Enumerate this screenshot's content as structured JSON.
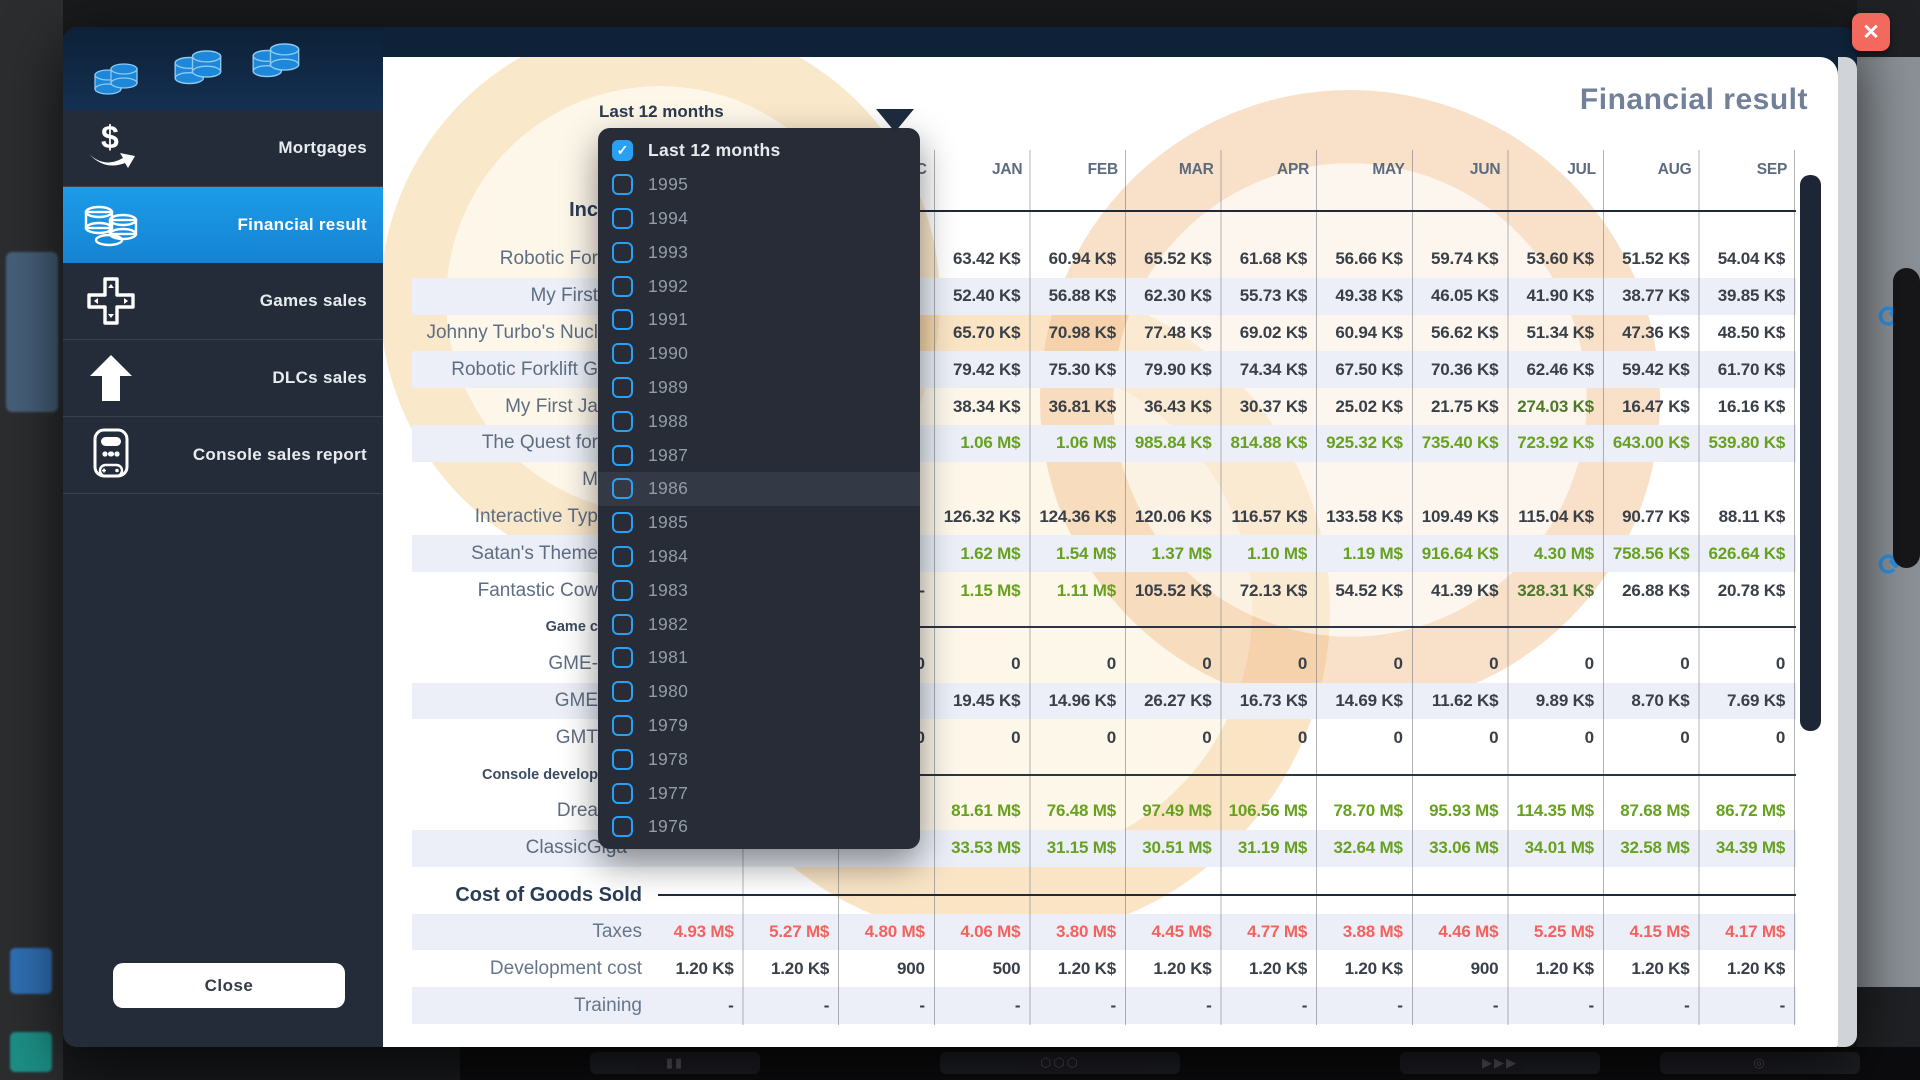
{
  "dialog": {
    "title": "Financial result",
    "close_symbol": "✕"
  },
  "filter": {
    "selected": "Last 12 months"
  },
  "sidebar": {
    "items": [
      {
        "label": "Mortgages"
      },
      {
        "label": "Financial result",
        "active": true
      },
      {
        "label": "Games sales"
      },
      {
        "label": "DLCs sales"
      },
      {
        "label": "Console sales report"
      }
    ],
    "close_label": "Close"
  },
  "dropdown": {
    "check_glyph": "✓",
    "items": [
      {
        "label": "Last 12 months",
        "checked": true
      },
      {
        "label": "1995"
      },
      {
        "label": "1994"
      },
      {
        "label": "1993"
      },
      {
        "label": "1992"
      },
      {
        "label": "1991"
      },
      {
        "label": "1990"
      },
      {
        "label": "1989"
      },
      {
        "label": "1988"
      },
      {
        "label": "1987"
      },
      {
        "label": "1986",
        "highlighted": true
      },
      {
        "label": "1985"
      },
      {
        "label": "1984"
      },
      {
        "label": "1983"
      },
      {
        "label": "1982"
      },
      {
        "label": "1981"
      },
      {
        "label": "1980"
      },
      {
        "label": "1979"
      },
      {
        "label": "1978"
      },
      {
        "label": "1977"
      },
      {
        "label": "1976"
      }
    ]
  },
  "colors": {
    "accent_blue": "#1c9ce9",
    "positive_green": "#67a11f",
    "negative_red": "#f4625c",
    "checkbox_blue": "#2aa0f5",
    "close_red": "#f3695e"
  },
  "table": {
    "months": [
      "",
      "",
      "DEC",
      "JAN",
      "FEB",
      "MAR",
      "APR",
      "MAY",
      "JUN",
      "JUL",
      "AUG",
      "SEP"
    ],
    "rows": [
      {
        "type": "months"
      },
      {
        "type": "section",
        "label": "Inc",
        "pad": "cut",
        "cls": "sec-income"
      },
      {
        "type": "data",
        "label": "Robotic For",
        "pad": "cut",
        "color": "d",
        "values": [
          "",
          "",
          "",
          "63.42 K$",
          "60.94 K$",
          "65.52 K$",
          "61.68 K$",
          "56.66 K$",
          "59.74 K$",
          "53.60 K$",
          "51.52 K$",
          "54.04 K$"
        ]
      },
      {
        "type": "data",
        "label": "My First",
        "pad": "cut",
        "stripe": true,
        "color": "d",
        "values": [
          "",
          "",
          "",
          "52.40 K$",
          "56.88 K$",
          "62.30 K$",
          "55.73 K$",
          "49.38 K$",
          "46.05 K$",
          "41.90 K$",
          "38.77 K$",
          "39.85 K$"
        ]
      },
      {
        "type": "data",
        "label": "Johnny Turbo's Nucl",
        "pad": "cut",
        "color": "d",
        "values": [
          "",
          "",
          "",
          "65.70 K$",
          "70.98 K$",
          "77.48 K$",
          "69.02 K$",
          "60.94 K$",
          "56.62 K$",
          "51.34 K$",
          "47.36 K$",
          "48.50 K$"
        ]
      },
      {
        "type": "data",
        "label": "Robotic Forklift G",
        "pad": "cut",
        "stripe": true,
        "color": "d",
        "values": [
          "",
          "",
          "",
          "79.42 K$",
          "75.30 K$",
          "79.90 K$",
          "74.34 K$",
          "67.50 K$",
          "70.36 K$",
          "62.46 K$",
          "59.42 K$",
          "61.70 K$"
        ]
      },
      {
        "type": "data",
        "label": "My First Ja",
        "pad": "cut",
        "color": "d",
        "overrides": {
          "9": "g2"
        },
        "values": [
          "",
          "",
          "",
          "38.34 K$",
          "36.81 K$",
          "36.43 K$",
          "30.37 K$",
          "25.02 K$",
          "21.75 K$",
          "274.03 K$",
          "16.47 K$",
          "16.16 K$"
        ]
      },
      {
        "type": "data",
        "label": "The Quest for",
        "pad": "cut",
        "stripe": true,
        "color": "g",
        "values": [
          "",
          "",
          "",
          "1.06 M$",
          "1.06 M$",
          "985.84 K$",
          "814.88 K$",
          "925.32 K$",
          "735.40 K$",
          "723.92 K$",
          "643.00 K$",
          "539.80 K$"
        ]
      },
      {
        "type": "data",
        "label": "M",
        "pad": "cut",
        "color": "d",
        "values": [
          "",
          "",
          "",
          "",
          "",
          "",
          "",
          "",
          "",
          "",
          "",
          ""
        ]
      },
      {
        "type": "data",
        "label": "Interactive Typ",
        "pad": "cut",
        "color": "d",
        "values": [
          "",
          "",
          "",
          "126.32 K$",
          "124.36 K$",
          "120.06 K$",
          "116.57 K$",
          "133.58 K$",
          "109.49 K$",
          "115.04 K$",
          "90.77 K$",
          "88.11 K$"
        ]
      },
      {
        "type": "data",
        "label": "Satan's Theme",
        "pad": "cut",
        "stripe": true,
        "color": "g",
        "values": [
          "",
          "",
          "",
          "1.62 M$",
          "1.54 M$",
          "1.37 M$",
          "1.10 M$",
          "1.19 M$",
          "916.64 K$",
          "4.30 M$",
          "758.56 K$",
          "626.64 K$"
        ]
      },
      {
        "type": "data",
        "label": "Fantastic Cow",
        "pad": "cut",
        "color": "d",
        "overrides": {
          "3": "g",
          "4": "g",
          "9": "g2"
        },
        "values": [
          "",
          "",
          "-",
          "1.15 M$",
          "1.11 M$",
          "105.52 K$",
          "72.13 K$",
          "54.52 K$",
          "41.39 K$",
          "328.31 K$",
          "26.88 K$",
          "20.78 K$"
        ]
      },
      {
        "type": "sub",
        "label": "Game c",
        "pad": "cut"
      },
      {
        "type": "data",
        "label": "GME-",
        "pad": "cut",
        "color": "d",
        "values": [
          "",
          "",
          "0",
          "0",
          "0",
          "0",
          "0",
          "0",
          "0",
          "0",
          "0",
          "0"
        ]
      },
      {
        "type": "data",
        "label": "GME",
        "pad": "cut",
        "stripe": true,
        "color": "d",
        "values": [
          "",
          "",
          "",
          "19.45 K$",
          "14.96 K$",
          "26.27 K$",
          "16.73 K$",
          "14.69 K$",
          "11.62 K$",
          "9.89 K$",
          "8.70 K$",
          "7.69 K$"
        ]
      },
      {
        "type": "data",
        "label": "GMT",
        "pad": "cut",
        "color": "d",
        "values": [
          "",
          "",
          "0",
          "0",
          "0",
          "0",
          "0",
          "0",
          "0",
          "0",
          "0",
          "0"
        ]
      },
      {
        "type": "sub",
        "label": "Console develop",
        "pad": "cut"
      },
      {
        "type": "data",
        "label": "Drea",
        "pad": "cut",
        "color": "g",
        "values": [
          "",
          "",
          "",
          "81.61 M$",
          "76.48 M$",
          "97.49 M$",
          "106.56 M$",
          "78.70 M$",
          "95.93 M$",
          "114.35 M$",
          "87.68 M$",
          "86.72 M$"
        ]
      },
      {
        "type": "data",
        "label": "ClassicGiga",
        "pad": "cut2",
        "stripe": true,
        "color": "g",
        "values": [
          "",
          "",
          "",
          "33.53 M$",
          "31.15 M$",
          "30.51 M$",
          "31.19 M$",
          "32.64 M$",
          "33.06 M$",
          "34.01 M$",
          "32.58 M$",
          "34.39 M$"
        ]
      },
      {
        "type": "section",
        "label": "Cost of Goods Sold",
        "cls": "sec-cost"
      },
      {
        "type": "data",
        "label": "Taxes",
        "cls": "cost",
        "stripe": true,
        "color": "r",
        "values": [
          "4.93 M$",
          "5.27 M$",
          "4.80 M$",
          "4.06 M$",
          "3.80 M$",
          "4.45 M$",
          "4.77 M$",
          "3.88 M$",
          "4.46 M$",
          "5.25 M$",
          "4.15 M$",
          "4.17 M$"
        ]
      },
      {
        "type": "data",
        "label": "Development cost",
        "cls": "cost",
        "color": "d",
        "values": [
          "1.20 K$",
          "1.20 K$",
          "900",
          "500",
          "1.20 K$",
          "1.20 K$",
          "1.20 K$",
          "1.20 K$",
          "900",
          "1.20 K$",
          "1.20 K$",
          "1.20 K$"
        ]
      },
      {
        "type": "data",
        "label": "Training",
        "cls": "cost",
        "stripe": true,
        "color": "d",
        "values": [
          "-",
          "-",
          "-",
          "-",
          "-",
          "-",
          "-",
          "-",
          "-",
          "-",
          "-",
          "-"
        ]
      }
    ]
  }
}
